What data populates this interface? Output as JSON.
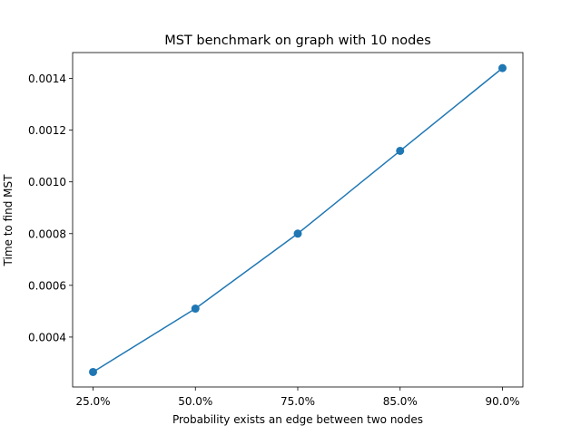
{
  "chart_data": {
    "type": "line",
    "title": "MST benchmark on graph with 10 nodes",
    "xlabel": "Probability exists an edge between two nodes",
    "ylabel": "Time to find MST",
    "categories": [
      "25.0%",
      "50.0%",
      "75.0%",
      "85.0%",
      "90.0%"
    ],
    "series": [
      {
        "values": [
          0.000265,
          0.00051,
          0.0008,
          0.00112,
          0.00144
        ],
        "color": "#1f77b4",
        "marker": "circle"
      }
    ],
    "ylim": [
      0.000207,
      0.0015
    ],
    "yticks": [
      0.0004,
      0.0006,
      0.0008,
      0.001,
      0.0012,
      0.0014
    ],
    "ytick_labels": [
      "0.0004",
      "0.0006",
      "0.0008",
      "0.0010",
      "0.0012",
      "0.0014"
    ],
    "grid": false,
    "legend": "none"
  }
}
